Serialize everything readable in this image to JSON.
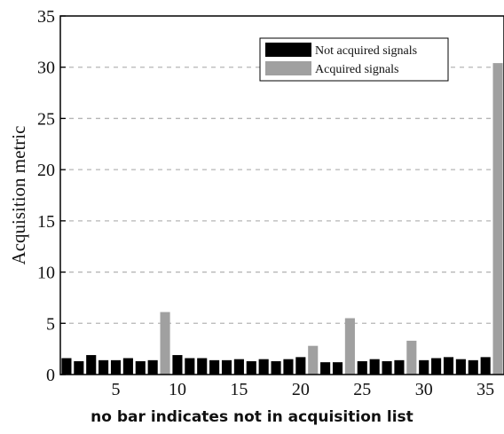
{
  "chart_data": {
    "type": "bar",
    "title": "",
    "xlabel": "",
    "ylabel": "Acquisition metric",
    "ylim": [
      0,
      35
    ],
    "xlim": [
      0.5,
      36.5
    ],
    "yticks": [
      0,
      5,
      10,
      15,
      20,
      25,
      30,
      35
    ],
    "xticks": [
      5,
      10,
      15,
      20,
      25,
      30,
      35
    ],
    "grid": "horizontal dashed",
    "legend_position": "top-right",
    "series": [
      {
        "name": "Not acquired signals",
        "color": "#000000",
        "x": [
          1,
          2,
          3,
          4,
          5,
          6,
          7,
          8,
          10,
          11,
          12,
          13,
          14,
          15,
          16,
          17,
          18,
          19,
          20,
          22,
          23,
          25,
          26,
          27,
          28,
          30,
          31,
          32,
          33,
          34,
          35
        ],
        "values": [
          1.6,
          1.3,
          1.9,
          1.4,
          1.4,
          1.6,
          1.3,
          1.4,
          1.9,
          1.6,
          1.6,
          1.4,
          1.4,
          1.5,
          1.3,
          1.5,
          1.3,
          1.5,
          1.7,
          1.2,
          1.2,
          1.3,
          1.5,
          1.3,
          1.4,
          1.4,
          1.6,
          1.7,
          1.5,
          1.4,
          1.7
        ]
      },
      {
        "name": "Acquired signals",
        "color": "#a0a0a0",
        "x": [
          9,
          21,
          24,
          29,
          36
        ],
        "values": [
          6.1,
          2.8,
          5.5,
          3.3,
          30.4
        ]
      }
    ]
  },
  "caption": "no bar indicates not in acquisition list"
}
